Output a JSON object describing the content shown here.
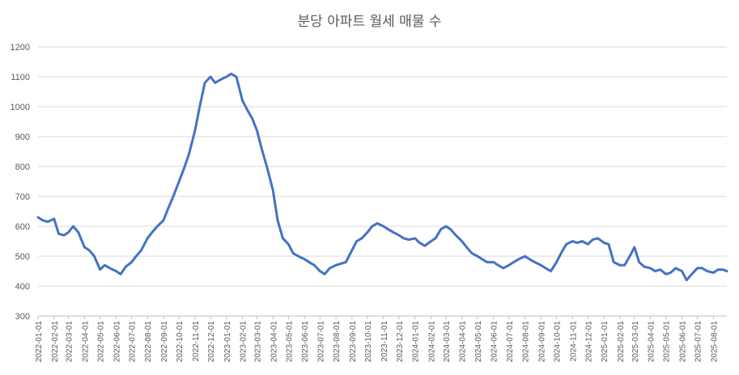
{
  "chart_data": {
    "type": "line",
    "title": "분당 아파트 월세 매물 수",
    "xlabel": "",
    "ylabel": "",
    "ylim": [
      300,
      1200
    ],
    "yticks": [
      300,
      400,
      500,
      600,
      700,
      800,
      900,
      1000,
      1100,
      1200
    ],
    "grid": true,
    "legend": "none",
    "x_tick_labels": [
      "2022-01-01",
      "2022-02-01",
      "2022-03-01",
      "2022-04-01",
      "2022-05-01",
      "2022-06-01",
      "2022-07-01",
      "2022-08-01",
      "2022-09-01",
      "2022-10-01",
      "2022-11-01",
      "2022-12-01",
      "2023-01-01",
      "2023-02-01",
      "2023-03-01",
      "2023-04-01",
      "2023-05-01",
      "2023-06-01",
      "2023-07-01",
      "2023-08-01",
      "2023-09-01",
      "2023-10-01",
      "2023-11-01",
      "2023-12-01",
      "2024-01-01",
      "2024-02-01",
      "2024-03-01",
      "2024-04-01",
      "2024-05-01",
      "2024-06-01",
      "2024-07-01",
      "2024-08-01",
      "2024-09-01",
      "2024-10-01",
      "2024-11-01",
      "2024-12-01",
      "2025-01-01",
      "2025-02-01",
      "2025-03-01",
      "2025-04-01",
      "2025-05-01",
      "2025-06-01",
      "2025-07-01",
      "2025-08-01"
    ],
    "series_color": "#4472C4",
    "series": [
      {
        "x": [
          "2022-01-01",
          "2022-01-10",
          "2022-01-20",
          "2022-02-01",
          "2022-02-10",
          "2022-02-20",
          "2022-03-01",
          "2022-03-10",
          "2022-03-20",
          "2022-04-01",
          "2022-04-10",
          "2022-04-20",
          "2022-05-01",
          "2022-05-10",
          "2022-05-20",
          "2022-06-01",
          "2022-06-10",
          "2022-06-20",
          "2022-07-01",
          "2022-07-10",
          "2022-07-20",
          "2022-08-01",
          "2022-08-10",
          "2022-08-20",
          "2022-09-01",
          "2022-09-10",
          "2022-09-20",
          "2022-10-01",
          "2022-10-10",
          "2022-10-20",
          "2022-11-01",
          "2022-11-10",
          "2022-11-20",
          "2022-12-01",
          "2022-12-10",
          "2022-12-20",
          "2023-01-01",
          "2023-01-10",
          "2023-01-20",
          "2023-02-01",
          "2023-02-10",
          "2023-02-20",
          "2023-03-01",
          "2023-03-10",
          "2023-03-20",
          "2023-04-01",
          "2023-04-10",
          "2023-04-20",
          "2023-05-01",
          "2023-05-10",
          "2023-05-20",
          "2023-06-01",
          "2023-06-10",
          "2023-06-20",
          "2023-07-01",
          "2023-07-10",
          "2023-07-20",
          "2023-08-01",
          "2023-08-10",
          "2023-08-20",
          "2023-09-01",
          "2023-09-10",
          "2023-09-20",
          "2023-10-01",
          "2023-10-10",
          "2023-10-20",
          "2023-11-01",
          "2023-11-10",
          "2023-11-20",
          "2023-12-01",
          "2023-12-10",
          "2023-12-20",
          "2024-01-01",
          "2024-01-10",
          "2024-01-20",
          "2024-02-01",
          "2024-02-10",
          "2024-02-20",
          "2024-03-01",
          "2024-03-10",
          "2024-03-20",
          "2024-04-01",
          "2024-04-10",
          "2024-04-20",
          "2024-05-01",
          "2024-05-10",
          "2024-05-20",
          "2024-06-01",
          "2024-06-10",
          "2024-06-20",
          "2024-07-01",
          "2024-07-10",
          "2024-07-20",
          "2024-08-01",
          "2024-08-10",
          "2024-08-20",
          "2024-09-01",
          "2024-09-10",
          "2024-09-20",
          "2024-10-01",
          "2024-10-10",
          "2024-10-20",
          "2024-11-01",
          "2024-11-10",
          "2024-11-20",
          "2024-12-01",
          "2024-12-10",
          "2024-12-20",
          "2025-01-01",
          "2025-01-10",
          "2025-01-20",
          "2025-02-01",
          "2025-02-10",
          "2025-02-20",
          "2025-03-01",
          "2025-03-10",
          "2025-03-20",
          "2025-04-01",
          "2025-04-10",
          "2025-04-20",
          "2025-05-01",
          "2025-05-10",
          "2025-05-20",
          "2025-06-01",
          "2025-06-10",
          "2025-06-20",
          "2025-07-01",
          "2025-07-10",
          "2025-07-20",
          "2025-08-01",
          "2025-08-10",
          "2025-08-20",
          "2025-08-27"
        ],
        "values": [
          630,
          620,
          615,
          625,
          575,
          570,
          580,
          600,
          580,
          530,
          520,
          500,
          455,
          470,
          460,
          450,
          440,
          465,
          480,
          500,
          520,
          560,
          580,
          600,
          620,
          660,
          700,
          750,
          790,
          840,
          920,
          1000,
          1080,
          1100,
          1080,
          1090,
          1100,
          1110,
          1100,
          1020,
          990,
          960,
          920,
          860,
          800,
          720,
          620,
          560,
          540,
          510,
          500,
          490,
          480,
          470,
          450,
          440,
          460,
          470,
          475,
          480,
          520,
          550,
          560,
          580,
          600,
          610,
          600,
          590,
          580,
          570,
          560,
          555,
          560,
          545,
          535,
          550,
          560,
          590,
          600,
          590,
          570,
          550,
          530,
          510,
          500,
          490,
          480,
          480,
          470,
          460,
          470,
          480,
          490,
          500,
          490,
          480,
          470,
          460,
          450,
          480,
          510,
          540,
          550,
          545,
          550,
          540,
          555,
          560,
          545,
          540,
          480,
          470,
          470,
          500,
          530,
          480,
          465,
          460,
          450,
          455,
          440,
          445,
          460,
          450,
          420,
          440,
          460,
          460,
          450,
          445,
          455,
          455,
          450
        ]
      }
    ]
  }
}
